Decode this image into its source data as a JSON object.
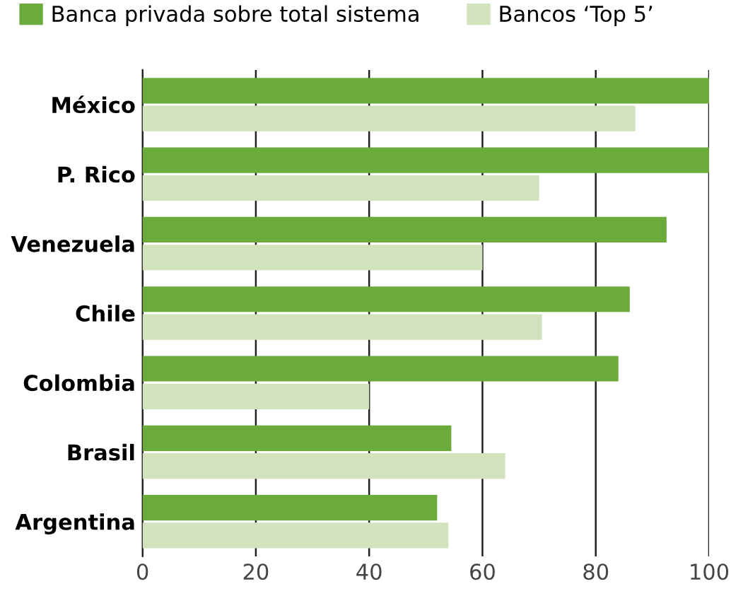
{
  "chart_data": {
    "type": "bar",
    "orientation": "horizontal",
    "categories": [
      "México",
      "P. Rico",
      "Venezuela",
      "Chile",
      "Colombia",
      "Brasil",
      "Argentina"
    ],
    "series": [
      {
        "name": "Banca privada sobre total sistema",
        "color": "#6aab3c",
        "values": [
          100,
          100,
          92.5,
          86,
          84,
          54.5,
          52
        ]
      },
      {
        "name": "Bancos ‘Top 5’",
        "color": "#d2e2bd",
        "values": [
          87,
          70,
          60,
          70.5,
          40,
          64,
          54
        ]
      }
    ],
    "xlim": [
      0,
      100
    ],
    "xticks": [
      0,
      20,
      40,
      60,
      80,
      100
    ],
    "grid": "x",
    "legend": "top"
  }
}
